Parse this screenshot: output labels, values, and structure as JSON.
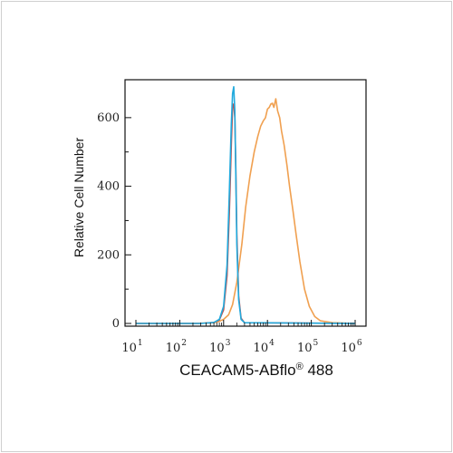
{
  "chart_data": {
    "type": "line",
    "title": "",
    "xlabel": "CEACAM5-ABflo",
    "xlabel_mark": "®",
    "xlabel_suffix": " 488",
    "ylabel": "Relative Cell Number",
    "x_scale": "log",
    "xlim": [
      10,
      1000000
    ],
    "ylim": [
      0,
      700
    ],
    "yticks": [
      0,
      200,
      400,
      600
    ],
    "xticks": [
      {
        "value": 10,
        "base": "10",
        "exp": "1"
      },
      {
        "value": 100,
        "base": "10",
        "exp": "2"
      },
      {
        "value": 1000,
        "base": "10",
        "exp": "3"
      },
      {
        "value": 10000,
        "base": "10",
        "exp": "4"
      },
      {
        "value": 100000,
        "base": "10",
        "exp": "5"
      },
      {
        "value": 1000000,
        "base": "10",
        "exp": "6"
      }
    ],
    "grid": false,
    "legend": "none",
    "series": [
      {
        "color": "#f0a050",
        "x": [
          10,
          200,
          600,
          800,
          1000,
          1300,
          1600,
          2000,
          2600,
          3200,
          4000,
          5000,
          6000,
          7000,
          8000,
          9000,
          10000,
          11000,
          12000,
          13000,
          14000,
          15500,
          17000,
          19000,
          21000,
          24000,
          28000,
          32000,
          38000,
          45000,
          55000,
          70000,
          90000,
          120000,
          160000,
          300000,
          1000000
        ],
        "y": [
          0,
          0,
          2,
          6,
          12,
          25,
          55,
          120,
          230,
          340,
          430,
          500,
          545,
          575,
          590,
          600,
          625,
          630,
          640,
          642,
          630,
          655,
          620,
          600,
          560,
          520,
          460,
          400,
          330,
          260,
          180,
          100,
          50,
          20,
          8,
          2,
          0
        ]
      },
      {
        "color": "#c0504d",
        "x": [
          10,
          300,
          600,
          800,
          1000,
          1200,
          1350,
          1500,
          1600,
          1700,
          1800,
          1900,
          2000,
          2200,
          2500,
          3000,
          1000000
        ],
        "y": [
          0,
          0,
          3,
          10,
          40,
          140,
          320,
          520,
          630,
          640,
          600,
          450,
          260,
          80,
          15,
          2,
          0
        ]
      },
      {
        "color": "#22aadd",
        "x": [
          10,
          300,
          600,
          800,
          1000,
          1200,
          1350,
          1500,
          1600,
          1700,
          1800,
          1900,
          2000,
          2200,
          2500,
          3000,
          1000000
        ],
        "y": [
          0,
          0,
          3,
          12,
          50,
          170,
          380,
          580,
          670,
          690,
          620,
          430,
          230,
          70,
          12,
          2,
          0
        ]
      }
    ]
  }
}
